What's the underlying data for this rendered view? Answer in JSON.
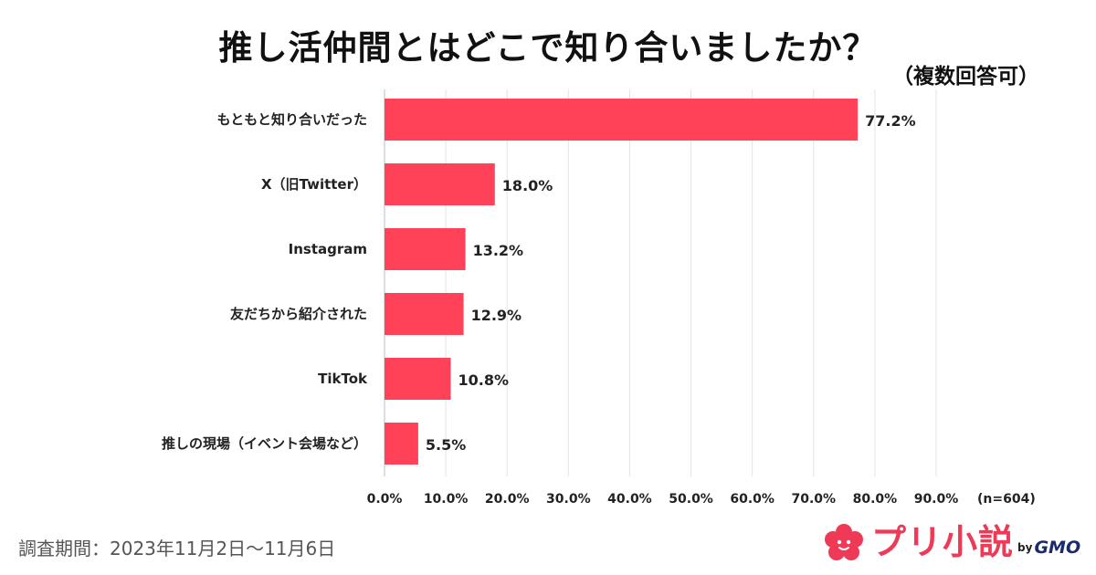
{
  "chart_data": {
    "type": "bar",
    "orientation": "horizontal",
    "title": "推し活仲間とはどこで知り合いましたか？",
    "subtitle": "（複数回答可）",
    "categories": [
      "もともと知り合いだった",
      "X（旧Twitter）",
      "Instagram",
      "友だちから紹介された",
      "TikTok",
      "推しの現場（イベント会場など）"
    ],
    "values": [
      77.2,
      18.0,
      13.2,
      12.9,
      10.8,
      5.5
    ],
    "value_labels": [
      "77.2%",
      "18.0%",
      "13.2%",
      "12.9%",
      "10.8%",
      "5.5%"
    ],
    "xlim": [
      0,
      90
    ],
    "x_ticks": [
      0,
      10,
      20,
      30,
      40,
      50,
      60,
      70,
      80,
      90
    ],
    "x_tick_labels": [
      "0.0%",
      "10.0%",
      "20.0%",
      "30.0%",
      "40.0%",
      "50.0%",
      "60.0%",
      "70.0%",
      "80.0%",
      "90.0%"
    ],
    "sample_size": "(n=604)",
    "grid": true,
    "bar_color": "#ff4258"
  },
  "footer": {
    "survey_period": "調査期間：2023年11月2日〜11月6日"
  },
  "brand": {
    "name": "プリ小説",
    "by": "by",
    "company": "GMO",
    "color": "#ee3a57"
  }
}
